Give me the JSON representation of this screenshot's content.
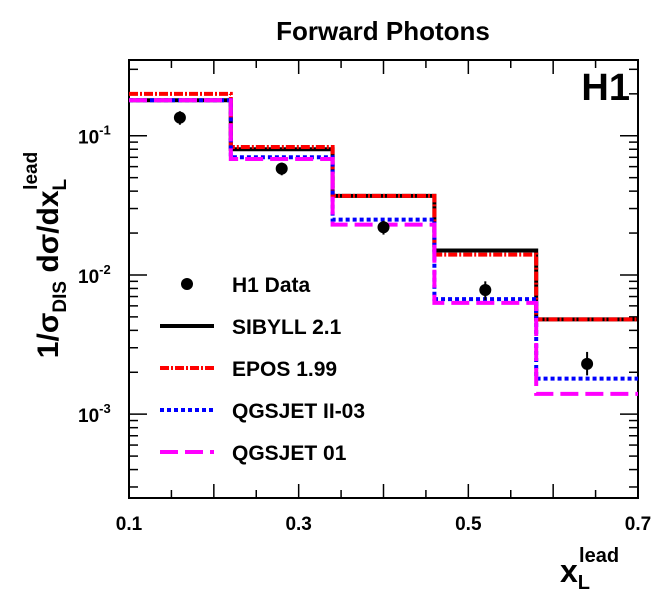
{
  "chart_data": {
    "type": "line",
    "title": "Forward Photons",
    "experiment_label": "H1",
    "ylabel": {
      "prefix": "1/σ",
      "prefix_sub": "DIS",
      "main": " dσ/dx",
      "sub": "L",
      "sup": "lead"
    },
    "xlabel": {
      "main": "x",
      "sub": "L",
      "sup": "lead"
    },
    "xlim": [
      0.1,
      0.7
    ],
    "ylim": [
      0.00025,
      0.35
    ],
    "yscale": "log",
    "x_ticks": [
      "0.1",
      "0.3",
      "0.5",
      "0.7"
    ],
    "y_ticks": [
      {
        "base": "10",
        "exp": "-1"
      },
      {
        "base": "10",
        "exp": "-2"
      },
      {
        "base": "10",
        "exp": "-3"
      }
    ],
    "bin_edges": [
      0.1,
      0.22,
      0.34,
      0.46,
      0.58,
      0.7
    ],
    "legend_position": "lower-left",
    "series": [
      {
        "name": "SIBYLL 2.1",
        "style": "solid",
        "color": "#000000",
        "values": [
          0.18,
          0.08,
          0.037,
          0.015,
          0.0048
        ]
      },
      {
        "name": "EPOS 1.99",
        "style": "dash-dot",
        "color": "#ff0000",
        "values": [
          0.2,
          0.083,
          0.037,
          0.014,
          0.0048
        ]
      },
      {
        "name": "QGSJET II-03",
        "style": "dotted",
        "color": "#0000ff",
        "values": [
          0.18,
          0.07,
          0.025,
          0.0067,
          0.0018
        ]
      },
      {
        "name": "QGSJET 01",
        "style": "long-dash",
        "color": "#ff00ff",
        "values": [
          0.18,
          0.068,
          0.023,
          0.0063,
          0.0014
        ]
      }
    ],
    "data_points": {
      "name": "H1 Data",
      "color": "#000000",
      "x": [
        0.16,
        0.28,
        0.4,
        0.52,
        0.64
      ],
      "y": [
        0.135,
        0.058,
        0.022,
        0.0078,
        0.0023
      ],
      "err_lo": [
        0.12,
        0.052,
        0.0195,
        0.0066,
        0.0019
      ],
      "err_hi": [
        0.15,
        0.064,
        0.0245,
        0.009,
        0.0028
      ]
    }
  }
}
